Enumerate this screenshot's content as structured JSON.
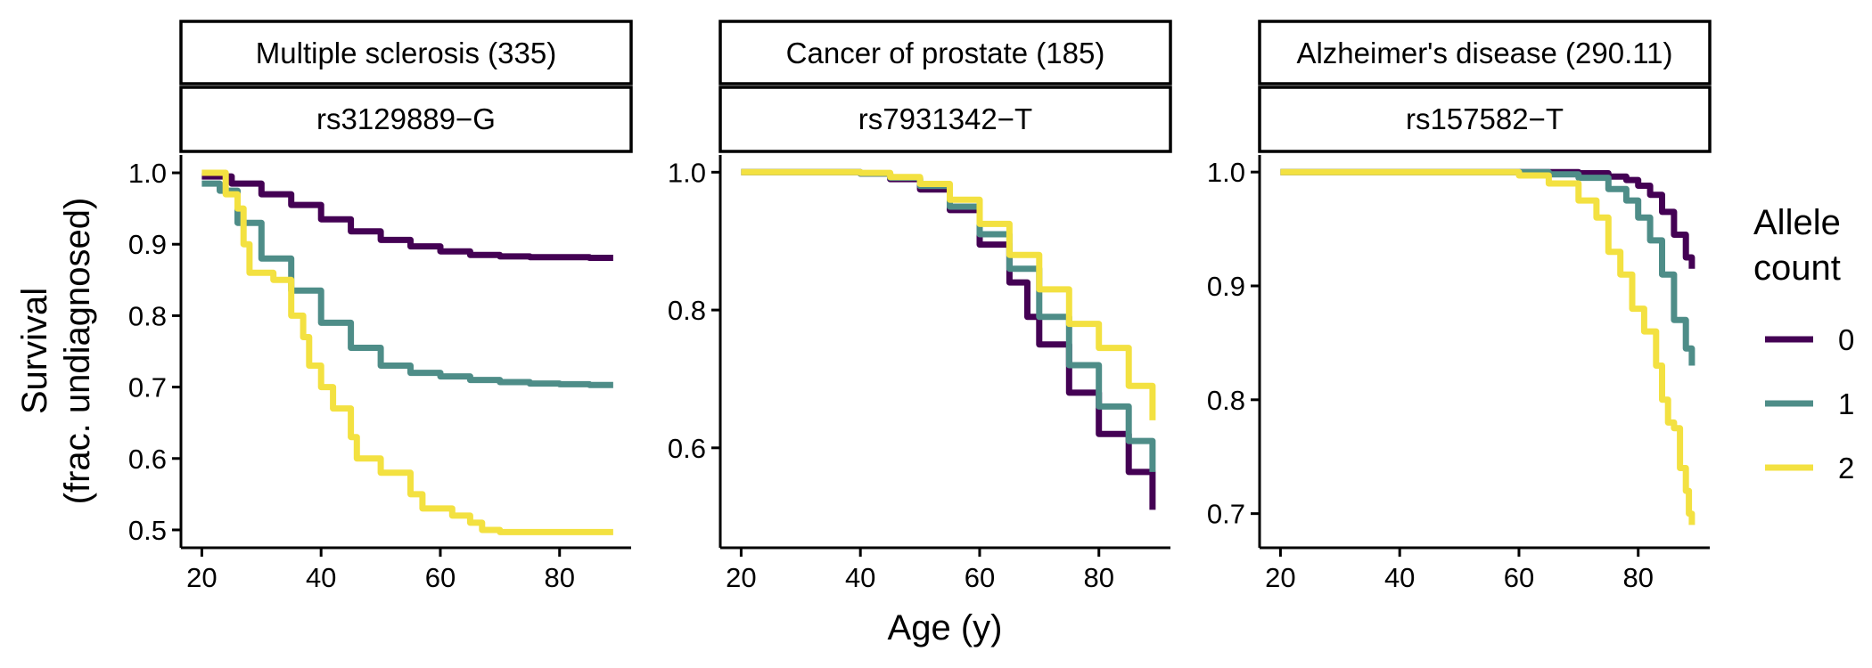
{
  "chart_data": {
    "type": "line",
    "xlabel": "Age (y)",
    "ylabel_line1": "Survival",
    "ylabel_line2": "(frac. undiagnosed)",
    "legend": {
      "title_line1": "Allele",
      "title_line2": "count",
      "placement": "right",
      "entries": [
        {
          "label": "0",
          "color": "#440154"
        },
        {
          "label": "1",
          "color": "#4e8d88"
        },
        {
          "label": "2",
          "color": "#f3e141"
        }
      ]
    },
    "x_ticks": [
      20,
      40,
      60,
      80
    ],
    "xlim": [
      16.5,
      92
    ],
    "panels": [
      {
        "strip_top": "Multiple sclerosis (335)",
        "strip_bottom": "rs3129889−G",
        "ylim": [
          0.475,
          1.025
        ],
        "y_ticks": [
          0.5,
          0.6,
          0.7,
          0.8,
          0.9,
          1.0
        ],
        "y_tick_labels": [
          "0.5",
          "0.6",
          "0.7",
          "0.8",
          "0.9",
          "1.0"
        ],
        "series": [
          {
            "name": "0",
            "x": [
              20,
              25,
              30,
              35,
              40,
              45,
              50,
              55,
              60,
              65,
              70,
              75,
              80,
              85,
              89
            ],
            "y": [
              0.995,
              0.985,
              0.97,
              0.955,
              0.935,
              0.918,
              0.906,
              0.897,
              0.89,
              0.885,
              0.883,
              0.882,
              0.882,
              0.881,
              0.881
            ]
          },
          {
            "name": "1",
            "x": [
              20,
              23,
              26,
              30,
              35,
              40,
              45,
              50,
              55,
              60,
              65,
              70,
              75,
              80,
              85,
              89
            ],
            "y": [
              0.985,
              0.975,
              0.93,
              0.88,
              0.835,
              0.79,
              0.755,
              0.73,
              0.72,
              0.715,
              0.71,
              0.707,
              0.705,
              0.704,
              0.703,
              0.703
            ]
          },
          {
            "name": "2",
            "x": [
              20,
              23,
              24,
              26,
              27,
              28,
              31,
              32,
              34,
              35,
              37,
              38,
              40,
              42,
              45,
              46,
              50,
              55,
              57,
              60,
              62,
              65,
              67,
              70,
              80,
              89
            ],
            "y": [
              1.0,
              1.0,
              0.97,
              0.95,
              0.9,
              0.86,
              0.86,
              0.85,
              0.85,
              0.8,
              0.77,
              0.73,
              0.7,
              0.67,
              0.63,
              0.6,
              0.58,
              0.55,
              0.53,
              0.53,
              0.52,
              0.51,
              0.5,
              0.497,
              0.497,
              0.497
            ]
          }
        ]
      },
      {
        "strip_top": "Cancer of prostate (185)",
        "strip_bottom": "rs7931342−T",
        "ylim": [
          0.455,
          1.025
        ],
        "y_ticks": [
          0.6,
          0.8,
          1.0
        ],
        "y_tick_labels": [
          "0.6",
          "0.8",
          "1.0"
        ],
        "series": [
          {
            "name": "0",
            "x": [
              20,
              40,
              45,
              50,
              55,
              60,
              65,
              68,
              70,
              75,
              80,
              85,
              89
            ],
            "y": [
              1.0,
              0.998,
              0.99,
              0.975,
              0.945,
              0.895,
              0.84,
              0.79,
              0.75,
              0.68,
              0.62,
              0.565,
              0.51
            ]
          },
          {
            "name": "1",
            "x": [
              20,
              40,
              45,
              50,
              55,
              60,
              65,
              70,
              75,
              80,
              85,
              89
            ],
            "y": [
              1.0,
              0.998,
              0.992,
              0.98,
              0.95,
              0.91,
              0.86,
              0.79,
              0.72,
              0.66,
              0.61,
              0.565
            ]
          },
          {
            "name": "2",
            "x": [
              20,
              40,
              45,
              50,
              55,
              60,
              65,
              70,
              75,
              80,
              85,
              89
            ],
            "y": [
              1.0,
              0.999,
              0.993,
              0.983,
              0.96,
              0.925,
              0.88,
              0.83,
              0.78,
              0.745,
              0.69,
              0.64
            ]
          }
        ]
      },
      {
        "strip_top": "Alzheimer's disease (290.11)",
        "strip_bottom": "rs157582−T",
        "ylim": [
          0.67,
          1.015
        ],
        "y_ticks": [
          0.7,
          0.8,
          0.9,
          1.0
        ],
        "y_tick_labels": [
          "0.7",
          "0.8",
          "0.9",
          "1.0"
        ],
        "series": [
          {
            "name": "0",
            "x": [
              20,
              60,
              65,
              70,
              75,
              78,
              80,
              82,
              84,
              86,
              88,
              89
            ],
            "y": [
              1.0,
              1.0,
              1.0,
              0.999,
              0.996,
              0.993,
              0.988,
              0.98,
              0.965,
              0.945,
              0.925,
              0.915
            ]
          },
          {
            "name": "1",
            "x": [
              20,
              60,
              65,
              70,
              75,
              78,
              80,
              82,
              84,
              86,
              88,
              89
            ],
            "y": [
              1.0,
              1.0,
              0.998,
              0.995,
              0.985,
              0.975,
              0.96,
              0.94,
              0.91,
              0.87,
              0.845,
              0.83
            ]
          },
          {
            "name": "2",
            "x": [
              20,
              55,
              60,
              65,
              70,
              73,
              75,
              77,
              79,
              81,
              83,
              84,
              85,
              86,
              87,
              88,
              88.5,
              89
            ],
            "y": [
              1.0,
              1.0,
              0.997,
              0.99,
              0.975,
              0.96,
              0.93,
              0.91,
              0.88,
              0.86,
              0.83,
              0.8,
              0.78,
              0.775,
              0.74,
              0.72,
              0.7,
              0.69
            ]
          }
        ]
      }
    ]
  }
}
